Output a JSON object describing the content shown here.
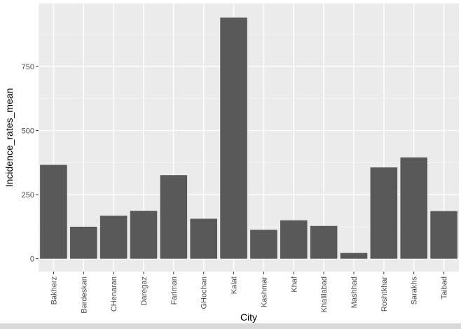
{
  "chart_data": {
    "type": "bar",
    "xlabel": "City",
    "ylabel": "Incidence_rates_mean",
    "categories": [
      "Bakherz",
      "Bardeskan",
      "CHenaran",
      "Daregaz",
      "Fariman",
      "GHochan",
      "Kalat",
      "Kashmar",
      "Khaf",
      "Khalilabad",
      "Mashhad",
      "Roshtkhar",
      "Sarakhs",
      "Taibad"
    ],
    "values": [
      366,
      125,
      168,
      187,
      326,
      156,
      940,
      113,
      150,
      128,
      23,
      356,
      395,
      186
    ],
    "ylim": [
      -50,
      995
    ],
    "yticks": [
      0,
      250,
      500,
      750
    ],
    "ytick_labels": [
      "0",
      "250",
      "500",
      "750"
    ],
    "grid": true,
    "colors": {
      "bar": "#595959",
      "panel": "#ebebeb",
      "grid_major": "#ffffff",
      "grid_minor": "#f5f5f5",
      "tick": "#333333",
      "tick_text": "#4d4d4d"
    }
  }
}
